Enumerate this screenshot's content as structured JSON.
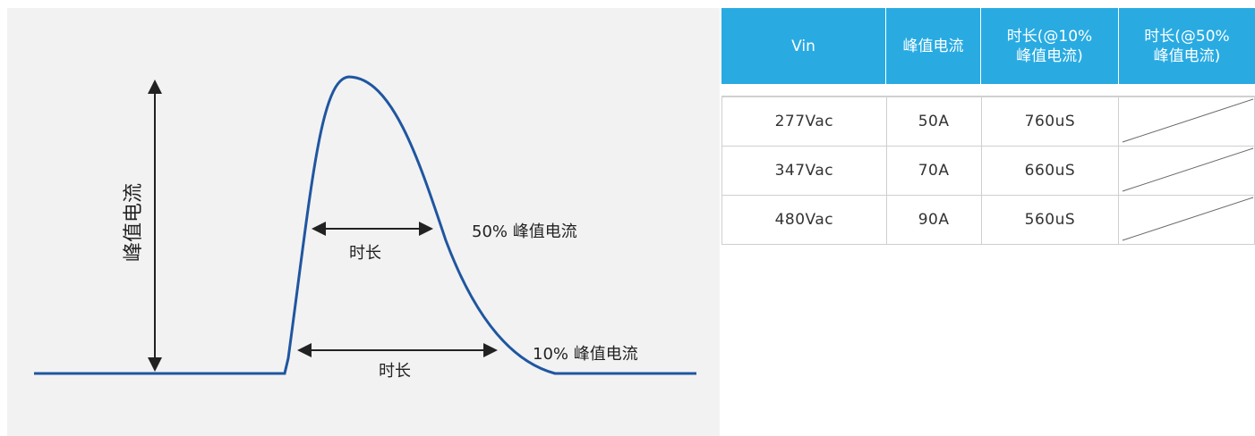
{
  "diagram": {
    "y_axis_label": "峰值电流",
    "duration_50_label": "时长",
    "duration_10_label": "时长",
    "level_50_label": "50% 峰值电流",
    "level_10_label": "10% 峰值电流",
    "curve_color": "#1f56a0",
    "arrow_color": "#222222",
    "background_color": "#f2f2f2"
  },
  "table": {
    "header_color": "#29abe2",
    "headers": [
      "Vin",
      "峰值电流",
      "时长(@10%\n峰值电流)",
      "时长(@50%\n峰值电流)"
    ],
    "rows": [
      {
        "vin": "277Vac",
        "peak": "50A",
        "dur10": "760uS",
        "dur50": ""
      },
      {
        "vin": "347Vac",
        "peak": "70A",
        "dur10": "660uS",
        "dur50": ""
      },
      {
        "vin": "480Vac",
        "peak": "90A",
        "dur10": "560uS",
        "dur50": ""
      }
    ]
  }
}
